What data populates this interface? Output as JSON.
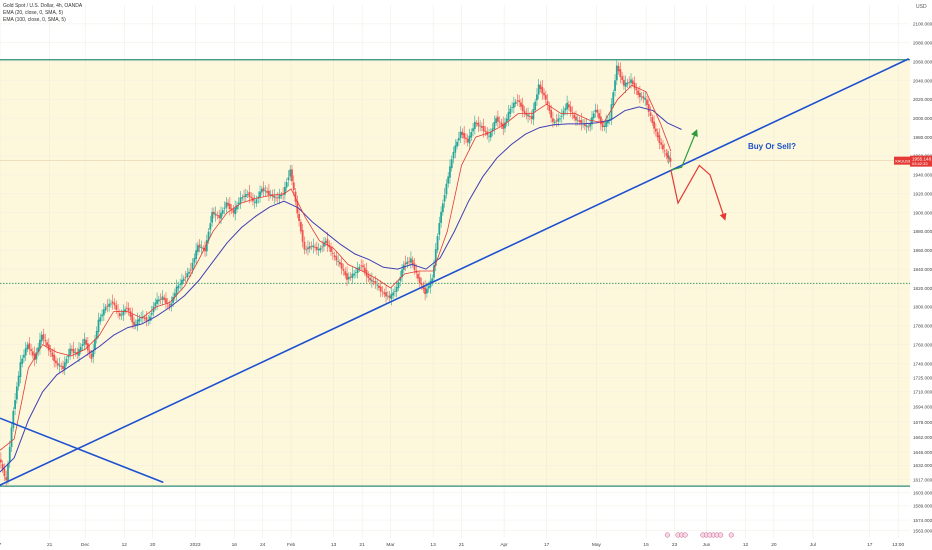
{
  "chart_data": {
    "type": "candlestick",
    "title": "Gold Spot / U.S. Dollar, 4h, OANDA",
    "legend": [
      {
        "label": "EMA (20, close, 0, SMA, 5)",
        "color": "#e53935"
      },
      {
        "label": "EMA (100, close, 0, SMA, 5)",
        "color": "#3f3fb5"
      }
    ],
    "ylim": [
      1555,
      2120
    ],
    "y_axis_label": "USD",
    "y_ticks": [
      1563,
      1574,
      1589,
      1603,
      1617,
      1632,
      1646,
      1662,
      1678,
      1694,
      1710,
      1725,
      1740,
      1760,
      1780,
      1800,
      1820,
      1840,
      1860,
      1880,
      1900,
      1920,
      1940,
      1960,
      1980,
      2000,
      2020,
      2040,
      2060,
      2080,
      2100
    ],
    "x_ticks": [
      {
        "label": "7",
        "x": 0
      },
      {
        "label": "21",
        "x": 14
      },
      {
        "label": "Dec",
        "x": 24
      },
      {
        "label": "12",
        "x": 35
      },
      {
        "label": "20",
        "x": 43
      },
      {
        "label": "2023",
        "x": 55
      },
      {
        "label": "16",
        "x": 66
      },
      {
        "label": "24",
        "x": 74
      },
      {
        "label": "Feb",
        "x": 82
      },
      {
        "label": "13",
        "x": 94
      },
      {
        "label": "21",
        "x": 102
      },
      {
        "label": "Mar",
        "x": 110
      },
      {
        "label": "13",
        "x": 122
      },
      {
        "label": "21",
        "x": 130
      },
      {
        "label": "Apr",
        "x": 142
      },
      {
        "label": "17",
        "x": 154
      },
      {
        "label": "May",
        "x": 168
      },
      {
        "label": "15",
        "x": 182
      },
      {
        "label": "23",
        "x": 190
      },
      {
        "label": "Jun",
        "x": 199
      },
      {
        "label": "12",
        "x": 210
      },
      {
        "label": "20",
        "x": 218
      },
      {
        "label": "Jul",
        "x": 229
      },
      {
        "label": "17",
        "x": 245
      },
      {
        "label": "13:00",
        "x": 253
      }
    ],
    "price_label": {
      "value": "1955.148",
      "sub": "03:42:33",
      "y": 1955,
      "ticker": "XAUUSD"
    },
    "annotation": "Buy Or Sell?",
    "close_path": [
      [
        0,
        1640
      ],
      [
        2,
        1615
      ],
      [
        4,
        1690
      ],
      [
        6,
        1740
      ],
      [
        8,
        1760
      ],
      [
        10,
        1745
      ],
      [
        12,
        1770
      ],
      [
        14,
        1755
      ],
      [
        16,
        1740
      ],
      [
        18,
        1735
      ],
      [
        20,
        1755
      ],
      [
        22,
        1750
      ],
      [
        24,
        1765
      ],
      [
        26,
        1745
      ],
      [
        28,
        1785
      ],
      [
        30,
        1800
      ],
      [
        32,
        1805
      ],
      [
        34,
        1790
      ],
      [
        36,
        1800
      ],
      [
        38,
        1780
      ],
      [
        40,
        1790
      ],
      [
        42,
        1785
      ],
      [
        44,
        1805
      ],
      [
        46,
        1810
      ],
      [
        48,
        1800
      ],
      [
        50,
        1820
      ],
      [
        52,
        1830
      ],
      [
        54,
        1840
      ],
      [
        56,
        1865
      ],
      [
        58,
        1860
      ],
      [
        60,
        1900
      ],
      [
        62,
        1895
      ],
      [
        64,
        1910
      ],
      [
        66,
        1900
      ],
      [
        68,
        1915
      ],
      [
        70,
        1920
      ],
      [
        72,
        1910
      ],
      [
        74,
        1925
      ],
      [
        76,
        1920
      ],
      [
        78,
        1915
      ],
      [
        80,
        1920
      ],
      [
        82,
        1945
      ],
      [
        84,
        1900
      ],
      [
        86,
        1860
      ],
      [
        88,
        1865
      ],
      [
        90,
        1860
      ],
      [
        92,
        1870
      ],
      [
        94,
        1855
      ],
      [
        96,
        1845
      ],
      [
        98,
        1830
      ],
      [
        100,
        1835
      ],
      [
        102,
        1845
      ],
      [
        104,
        1830
      ],
      [
        106,
        1825
      ],
      [
        108,
        1815
      ],
      [
        110,
        1810
      ],
      [
        112,
        1820
      ],
      [
        114,
        1845
      ],
      [
        116,
        1850
      ],
      [
        118,
        1830
      ],
      [
        120,
        1815
      ],
      [
        122,
        1830
      ],
      [
        124,
        1890
      ],
      [
        126,
        1930
      ],
      [
        128,
        1965
      ],
      [
        130,
        1985
      ],
      [
        132,
        1975
      ],
      [
        134,
        1995
      ],
      [
        136,
        1990
      ],
      [
        138,
        1980
      ],
      [
        140,
        2000
      ],
      [
        142,
        1990
      ],
      [
        144,
        2010
      ],
      [
        146,
        2020
      ],
      [
        148,
        2005
      ],
      [
        150,
        2000
      ],
      [
        152,
        2035
      ],
      [
        154,
        2020
      ],
      [
        156,
        1995
      ],
      [
        158,
        2000
      ],
      [
        160,
        2015
      ],
      [
        162,
        2000
      ],
      [
        164,
        1995
      ],
      [
        166,
        1990
      ],
      [
        168,
        2010
      ],
      [
        170,
        1990
      ],
      [
        172,
        2000
      ],
      [
        174,
        2055
      ],
      [
        176,
        2035
      ],
      [
        178,
        2040
      ],
      [
        180,
        2025
      ],
      [
        182,
        2020
      ],
      [
        184,
        1995
      ],
      [
        186,
        1975
      ],
      [
        188,
        1960
      ],
      [
        189,
        1955
      ]
    ],
    "ema20_path": [
      [
        0,
        1648
      ],
      [
        4,
        1660
      ],
      [
        8,
        1735
      ],
      [
        12,
        1760
      ],
      [
        16,
        1752
      ],
      [
        20,
        1748
      ],
      [
        24,
        1755
      ],
      [
        28,
        1770
      ],
      [
        32,
        1795
      ],
      [
        36,
        1795
      ],
      [
        40,
        1788
      ],
      [
        44,
        1800
      ],
      [
        48,
        1805
      ],
      [
        52,
        1822
      ],
      [
        56,
        1850
      ],
      [
        60,
        1880
      ],
      [
        64,
        1900
      ],
      [
        68,
        1910
      ],
      [
        72,
        1915
      ],
      [
        76,
        1918
      ],
      [
        80,
        1920
      ],
      [
        82,
        1925
      ],
      [
        86,
        1895
      ],
      [
        90,
        1870
      ],
      [
        94,
        1862
      ],
      [
        98,
        1845
      ],
      [
        102,
        1838
      ],
      [
        106,
        1830
      ],
      [
        110,
        1820
      ],
      [
        114,
        1835
      ],
      [
        118,
        1838
      ],
      [
        122,
        1838
      ],
      [
        126,
        1880
      ],
      [
        130,
        1950
      ],
      [
        134,
        1980
      ],
      [
        138,
        1985
      ],
      [
        142,
        1993
      ],
      [
        146,
        2005
      ],
      [
        150,
        2005
      ],
      [
        154,
        2015
      ],
      [
        158,
        2005
      ],
      [
        162,
        2005
      ],
      [
        166,
        1998
      ],
      [
        170,
        1995
      ],
      [
        174,
        2020
      ],
      [
        178,
        2035
      ],
      [
        182,
        2028
      ],
      [
        186,
        1995
      ],
      [
        189,
        1965
      ]
    ],
    "ema100_path": [
      [
        0,
        1625
      ],
      [
        4,
        1640
      ],
      [
        8,
        1680
      ],
      [
        12,
        1710
      ],
      [
        16,
        1728
      ],
      [
        20,
        1738
      ],
      [
        24,
        1748
      ],
      [
        28,
        1758
      ],
      [
        32,
        1770
      ],
      [
        36,
        1778
      ],
      [
        40,
        1782
      ],
      [
        44,
        1790
      ],
      [
        48,
        1800
      ],
      [
        52,
        1812
      ],
      [
        56,
        1828
      ],
      [
        60,
        1848
      ],
      [
        64,
        1868
      ],
      [
        68,
        1884
      ],
      [
        72,
        1896
      ],
      [
        76,
        1906
      ],
      [
        80,
        1912
      ],
      [
        84,
        1905
      ],
      [
        88,
        1890
      ],
      [
        92,
        1878
      ],
      [
        96,
        1866
      ],
      [
        100,
        1856
      ],
      [
        104,
        1850
      ],
      [
        108,
        1842
      ],
      [
        112,
        1840
      ],
      [
        116,
        1845
      ],
      [
        120,
        1840
      ],
      [
        124,
        1852
      ],
      [
        128,
        1880
      ],
      [
        132,
        1912
      ],
      [
        136,
        1938
      ],
      [
        140,
        1958
      ],
      [
        144,
        1972
      ],
      [
        148,
        1983
      ],
      [
        152,
        1990
      ],
      [
        156,
        1993
      ],
      [
        160,
        1994
      ],
      [
        164,
        1994
      ],
      [
        168,
        1995
      ],
      [
        172,
        1998
      ],
      [
        176,
        2008
      ],
      [
        180,
        2012
      ],
      [
        184,
        2008
      ],
      [
        188,
        1995
      ],
      [
        192,
        1988
      ]
    ],
    "upper_band_y": 2062,
    "lower_band_y": 1610,
    "dotted_level_y": 1825,
    "trendline_up": [
      [
        0,
        1611
      ],
      [
        256,
        2063
      ]
    ],
    "trendline_down": [
      [
        0,
        1682
      ],
      [
        46,
        1614
      ]
    ],
    "projection_up": [
      [
        189,
        1945
      ],
      [
        192,
        1948
      ],
      [
        196,
        1985
      ]
    ],
    "projection_down": [
      [
        189,
        1945
      ],
      [
        191,
        1910
      ],
      [
        197,
        1950
      ],
      [
        200,
        1940
      ],
      [
        204,
        1895
      ]
    ]
  }
}
